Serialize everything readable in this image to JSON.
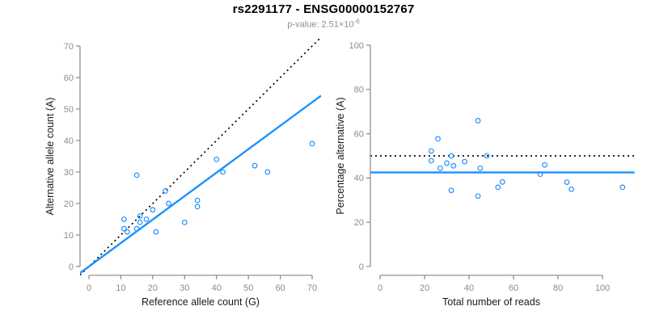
{
  "header": {
    "title": "rs2291177 - ENSG00000152767",
    "pvalue_prefix": "p-value: 2.51×10",
    "pvalue_exponent": "-6"
  },
  "colors": {
    "accent_blue": "#1E90FF",
    "reference_black": "#000000",
    "axis": "#888888",
    "tick_label": "#8c8c8c",
    "axis_title": "#1a1a1a",
    "subtitle": "#8e8e8e"
  },
  "chart_data": [
    {
      "type": "scatter",
      "title": "",
      "xlabel": "Reference allele count (G)",
      "ylabel": "Alternative allele count (A)",
      "xlim": [
        0,
        70
      ],
      "ylim": [
        0,
        70
      ],
      "xticks": [
        0,
        10,
        20,
        30,
        40,
        50,
        60,
        70
      ],
      "yticks": [
        0,
        10,
        20,
        30,
        40,
        50,
        60,
        70
      ],
      "grid": false,
      "points": [
        [
          11,
          12
        ],
        [
          11,
          15
        ],
        [
          12,
          11
        ],
        [
          15,
          12
        ],
        [
          15,
          29
        ],
        [
          16,
          14
        ],
        [
          16,
          16
        ],
        [
          18,
          15
        ],
        [
          20,
          18
        ],
        [
          21,
          11
        ],
        [
          24,
          24
        ],
        [
          25,
          20
        ],
        [
          30,
          14
        ],
        [
          34,
          19
        ],
        [
          34,
          21
        ],
        [
          40,
          34
        ],
        [
          42,
          30
        ],
        [
          52,
          32
        ],
        [
          56,
          30
        ],
        [
          70,
          39
        ]
      ],
      "lines": [
        {
          "name": "identity-line",
          "style": "dotted",
          "color": "#000000",
          "slope": 1,
          "intercept": 0
        },
        {
          "name": "fit-line",
          "style": "solid",
          "color": "#1E90FF",
          "slope": 0.745,
          "intercept": 0
        }
      ]
    },
    {
      "type": "scatter",
      "title": "",
      "xlabel": "Total number of reads",
      "ylabel": "Percentage alternative (A)",
      "xlim": [
        0,
        110
      ],
      "ylim": [
        0,
        100
      ],
      "xticks": [
        0,
        20,
        40,
        60,
        80,
        100
      ],
      "yticks": [
        0,
        20,
        40,
        60,
        80,
        100
      ],
      "grid": false,
      "points": [
        [
          23,
          52.2
        ],
        [
          26,
          57.7
        ],
        [
          23,
          47.8
        ],
        [
          27,
          44.4
        ],
        [
          30,
          46.7
        ],
        [
          32,
          50.0
        ],
        [
          33,
          45.5
        ],
        [
          38,
          47.4
        ],
        [
          32,
          34.4
        ],
        [
          44,
          65.9
        ],
        [
          45,
          44.4
        ],
        [
          44,
          31.8
        ],
        [
          48,
          50.0
        ],
        [
          53,
          35.8
        ],
        [
          55,
          38.2
        ],
        [
          74,
          45.9
        ],
        [
          72,
          41.7
        ],
        [
          84,
          38.1
        ],
        [
          86,
          34.9
        ],
        [
          109,
          35.8
        ]
      ],
      "lines": [
        {
          "name": "expected-50pct-line",
          "style": "dotted",
          "color": "#000000",
          "h": 50
        },
        {
          "name": "mean-percentage-line",
          "style": "solid",
          "color": "#1E90FF",
          "h": 42.5
        }
      ]
    }
  ]
}
